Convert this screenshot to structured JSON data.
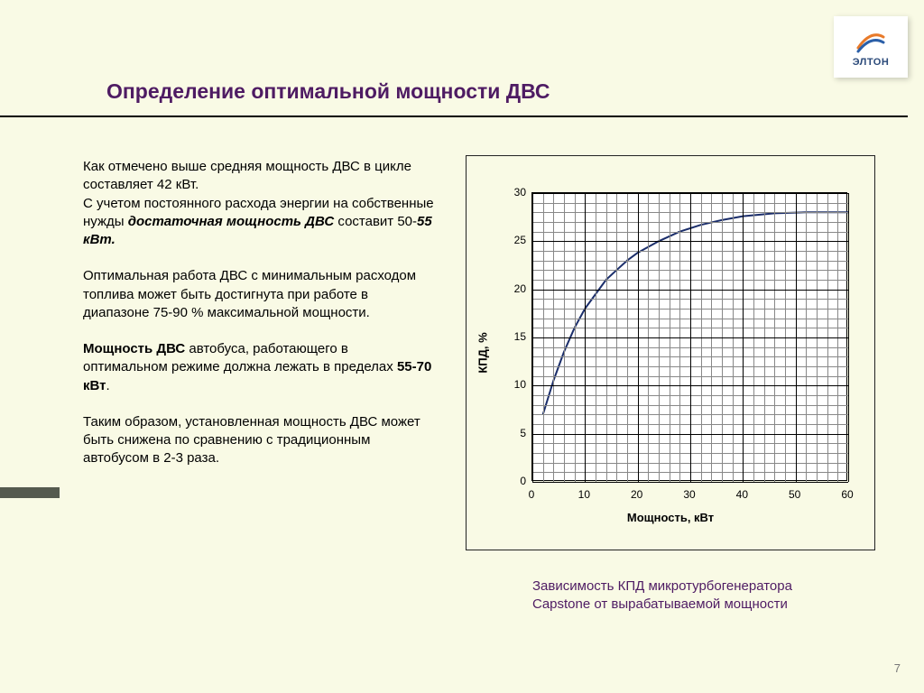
{
  "logo": {
    "text": "ЭЛТОН"
  },
  "title": "Определение оптимальной мощности ДВС",
  "paragraphs": {
    "p1a": "Как отмечено выше средняя мощность ДВС в цикле составляет 42 кВт.",
    "p1b": "С учетом постоянного расхода энергии на собственные нужды ",
    "p1b_bold": "достаточная мощность ДВС",
    "p1b_tail": " составит 50-",
    "p1b_bolditalic": "55 кВт.",
    "p2": "Оптимальная работа ДВС с минимальным расходом топлива может быть достигнута при работе в  диапазоне 75-90 % максимальной мощности.",
    "p3a_bold": "Мощность ДВС",
    "p3a": " автобуса, работающего в оптимальном режиме должна лежать в пределах ",
    "p3a_bold2": "55-70 кВт",
    "p3a_tail": ".",
    "p4": "Таким образом, установленная мощность ДВС может быть снижена по сравнению с традиционным автобусом в 2-3 раза."
  },
  "chart": {
    "type": "line",
    "x_axis_title": "Мощность, кВт",
    "y_axis_title": "КПД, %",
    "xlim": [
      0,
      60
    ],
    "ylim": [
      0,
      30
    ],
    "x_ticks": [
      0,
      10,
      20,
      30,
      40,
      50,
      60
    ],
    "y_ticks": [
      0,
      5,
      10,
      15,
      20,
      25,
      30
    ],
    "minor_x_step": 2,
    "minor_y_step": 1,
    "line_color": "#1b2e6b",
    "line_width": 2,
    "background_color": "#ffffff",
    "grid_color_major": "#000000",
    "grid_color_minor": "#888888",
    "data": [
      {
        "x": 2,
        "y": 7
      },
      {
        "x": 4,
        "y": 10.5
      },
      {
        "x": 6,
        "y": 13.5
      },
      {
        "x": 8,
        "y": 16
      },
      {
        "x": 10,
        "y": 18
      },
      {
        "x": 12,
        "y": 19.5
      },
      {
        "x": 14,
        "y": 21
      },
      {
        "x": 16,
        "y": 22
      },
      {
        "x": 18,
        "y": 23
      },
      {
        "x": 20,
        "y": 23.8
      },
      {
        "x": 24,
        "y": 25
      },
      {
        "x": 28,
        "y": 26
      },
      {
        "x": 32,
        "y": 26.7
      },
      {
        "x": 36,
        "y": 27.2
      },
      {
        "x": 40,
        "y": 27.6
      },
      {
        "x": 46,
        "y": 27.9
      },
      {
        "x": 52,
        "y": 28
      },
      {
        "x": 60,
        "y": 28
      }
    ]
  },
  "caption": "Зависимость КПД микротурбогенератора Capstone от вырабатываемой мощности",
  "page_number": "7"
}
